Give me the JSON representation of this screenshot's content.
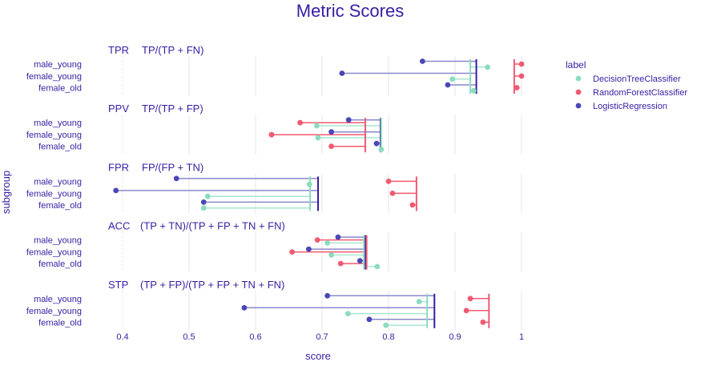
{
  "chart_data": {
    "type": "scatter",
    "title": "Metric Scores",
    "xlabel": "score",
    "ylabel": "subgroup",
    "xlim": [
      0.4,
      1.0
    ],
    "xticks": [
      "0.4",
      "0.5",
      "0.6",
      "0.7",
      "0.8",
      "0.9",
      "1"
    ],
    "xtick_values": [
      0.4,
      0.5,
      0.6,
      0.7,
      0.8,
      0.9,
      1.0
    ],
    "subgroups": [
      "male_young",
      "female_young",
      "female_old"
    ],
    "legend": {
      "title": "label",
      "position": "right"
    },
    "series": [
      {
        "name": "DecisionTreeClassifier",
        "color": "#8bdcbe"
      },
      {
        "name": "RandomForestClassifier",
        "color": "#f05a71"
      },
      {
        "name": "LogisticRegression",
        "color": "#4a47b8"
      }
    ],
    "panels": [
      {
        "metric": "TPR",
        "formula": "TP/(TP + FN)",
        "values": {
          "LogisticRegression": [
            0.851,
            0.73,
            0.889
          ],
          "RandomForestClassifier": [
            1.0,
            1.0,
            0.993
          ],
          "DecisionTreeClassifier": [
            0.949,
            0.896,
            0.928
          ]
        },
        "reference": {
          "LogisticRegression": 0.932,
          "RandomForestClassifier": 0.989,
          "DecisionTreeClassifier": 0.923
        }
      },
      {
        "metric": "PPV",
        "formula": "TP/(TP + FP)",
        "values": {
          "LogisticRegression": [
            0.74,
            0.714,
            0.782
          ],
          "RandomForestClassifier": [
            0.667,
            0.624,
            0.714
          ],
          "DecisionTreeClassifier": [
            0.692,
            0.694,
            0.789
          ]
        },
        "reference": {
          "LogisticRegression": 0.788,
          "RandomForestClassifier": 0.765,
          "DecisionTreeClassifier": 0.789
        }
      },
      {
        "metric": "FPR",
        "formula": "FP/(FP + TN)",
        "values": {
          "LogisticRegression": [
            0.481,
            0.39,
            0.522
          ],
          "RandomForestClassifier": [
            0.8,
            0.806,
            0.836
          ],
          "DecisionTreeClassifier": [
            0.681,
            0.528,
            0.522
          ]
        },
        "reference": {
          "LogisticRegression": 0.694,
          "RandomForestClassifier": 0.842,
          "DecisionTreeClassifier": 0.682
        }
      },
      {
        "metric": "ACC",
        "formula": "(TP + TN)/(TP + FP + TN + FN)",
        "values": {
          "LogisticRegression": [
            0.724,
            0.68,
            0.757
          ],
          "RandomForestClassifier": [
            0.693,
            0.655,
            0.728
          ],
          "DecisionTreeClassifier": [
            0.708,
            0.714,
            0.783
          ]
        },
        "reference": {
          "LogisticRegression": 0.765,
          "RandomForestClassifier": 0.767,
          "DecisionTreeClassifier": 0.763
        }
      },
      {
        "metric": "STP",
        "formula": "(TP + FP)/(TP + FP + TN + FN)",
        "values": {
          "LogisticRegression": [
            0.708,
            0.583,
            0.771
          ],
          "RandomForestClassifier": [
            0.923,
            0.917,
            0.942
          ],
          "DecisionTreeClassifier": [
            0.846,
            0.739,
            0.796
          ]
        },
        "reference": {
          "LogisticRegression": 0.869,
          "RandomForestClassifier": 0.951,
          "DecisionTreeClassifier": 0.858
        }
      }
    ]
  }
}
